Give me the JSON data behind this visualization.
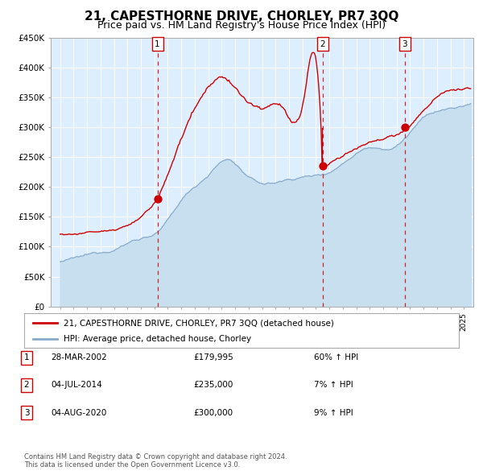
{
  "title": "21, CAPESTHORNE DRIVE, CHORLEY, PR7 3QQ",
  "subtitle": "Price paid vs. HM Land Registry's House Price Index (HPI)",
  "title_fontsize": 11,
  "subtitle_fontsize": 9,
  "bg_color": "#ddeeff",
  "grid_color": "#ffffff",
  "red_line_color": "#cc0000",
  "blue_line_color": "#88aacc",
  "blue_fill_color": "#c8dff0",
  "sale_dot_color": "#cc0000",
  "vline_color": "#cc0000",
  "yticks": [
    0,
    50000,
    100000,
    150000,
    200000,
    250000,
    300000,
    350000,
    400000,
    450000
  ],
  "ytick_labels": [
    "£0",
    "£50K",
    "£100K",
    "£150K",
    "£200K",
    "£250K",
    "£300K",
    "£350K",
    "£400K",
    "£450K"
  ],
  "xstart": 1995,
  "xend": 2025,
  "sale_dates": [
    2002.23,
    2014.5,
    2020.59
  ],
  "sale_prices": [
    179995,
    235000,
    300000
  ],
  "sale_labels": [
    "1",
    "2",
    "3"
  ],
  "sale_info": [
    {
      "num": "1",
      "date": "28-MAR-2002",
      "price": "£179,995",
      "pct": "60% ↑ HPI"
    },
    {
      "num": "2",
      "date": "04-JUL-2014",
      "price": "£235,000",
      "pct": "7% ↑ HPI"
    },
    {
      "num": "3",
      "date": "04-AUG-2020",
      "price": "£300,000",
      "pct": "9% ↑ HPI"
    }
  ],
  "legend_line1": "21, CAPESTHORNE DRIVE, CHORLEY, PR7 3QQ (detached house)",
  "legend_line2": "HPI: Average price, detached house, Chorley",
  "footnote": "Contains HM Land Registry data © Crown copyright and database right 2024.\nThis data is licensed under the Open Government Licence v3.0."
}
